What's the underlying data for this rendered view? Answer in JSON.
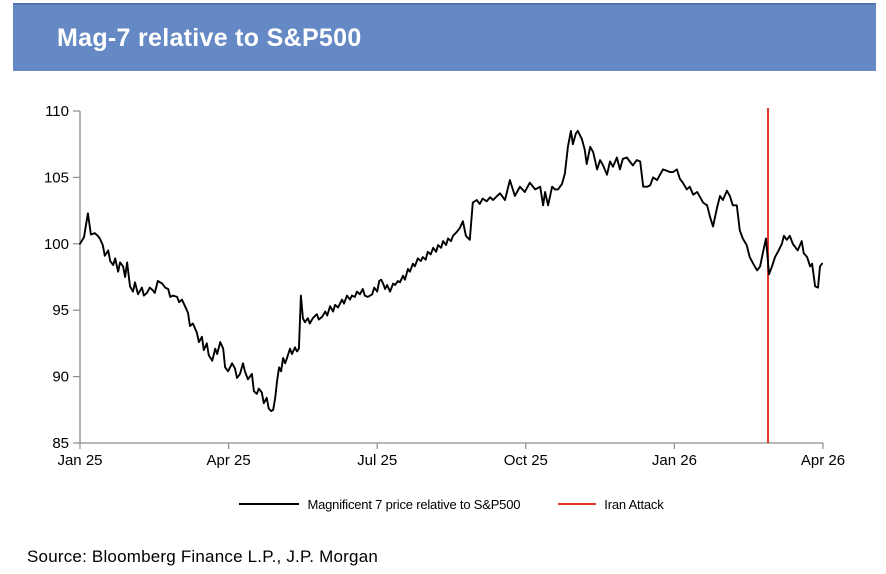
{
  "header": {
    "title": "Mag-7 relative to S&P500",
    "bg_color": "#6589c4",
    "top_border_color": "#4f75ab",
    "text_color": "#ffffff"
  },
  "source": {
    "text": "Source: Bloomberg Finance L.P., J.P. Morgan"
  },
  "chart_data": {
    "type": "line",
    "title": "Mag-7 relative to S&P500",
    "grid": false,
    "legend_position": "bottom-center",
    "axis_color": "#8c8c8c",
    "x_axis": {
      "ticks": [
        "Jan 25",
        "Apr 25",
        "Jul 25",
        "Oct 25",
        "Jan 26",
        "Apr 26"
      ],
      "tick_positions_months": [
        0,
        3,
        6,
        9,
        12,
        15
      ],
      "range_months": [
        0,
        15
      ]
    },
    "y_axis": {
      "ticks": [
        85,
        90,
        95,
        100,
        105,
        110
      ],
      "range": [
        85,
        110
      ]
    },
    "vline": {
      "label": "Iran Attack",
      "x_months": 13.89,
      "color": "#e5342a"
    },
    "series": [
      {
        "name": "Magnificent 7 price relative to S&P500",
        "color": "#000000",
        "points": [
          [
            0.0,
            100.0
          ],
          [
            0.08,
            100.5
          ],
          [
            0.16,
            102.3
          ],
          [
            0.22,
            100.7
          ],
          [
            0.3,
            100.8
          ],
          [
            0.36,
            100.6
          ],
          [
            0.4,
            100.4
          ],
          [
            0.46,
            99.9
          ],
          [
            0.5,
            99.1
          ],
          [
            0.57,
            99.5
          ],
          [
            0.61,
            98.7
          ],
          [
            0.67,
            98.4
          ],
          [
            0.71,
            98.9
          ],
          [
            0.77,
            97.9
          ],
          [
            0.81,
            98.6
          ],
          [
            0.87,
            98.3
          ],
          [
            0.91,
            97.5
          ],
          [
            0.95,
            98.6
          ],
          [
            1.01,
            96.8
          ],
          [
            1.07,
            96.4
          ],
          [
            1.11,
            97.1
          ],
          [
            1.17,
            96.2
          ],
          [
            1.25,
            96.7
          ],
          [
            1.29,
            96.1
          ],
          [
            1.35,
            96.3
          ],
          [
            1.41,
            96.7
          ],
          [
            1.47,
            96.5
          ],
          [
            1.51,
            96.3
          ],
          [
            1.57,
            97.2
          ],
          [
            1.66,
            97.0
          ],
          [
            1.72,
            96.7
          ],
          [
            1.78,
            96.6
          ],
          [
            1.82,
            96.0
          ],
          [
            1.88,
            96.1
          ],
          [
            1.96,
            96.0
          ],
          [
            2.0,
            95.6
          ],
          [
            2.06,
            95.8
          ],
          [
            2.12,
            95.3
          ],
          [
            2.18,
            94.8
          ],
          [
            2.22,
            93.8
          ],
          [
            2.28,
            94.0
          ],
          [
            2.36,
            93.3
          ],
          [
            2.4,
            92.6
          ],
          [
            2.46,
            93.0
          ],
          [
            2.5,
            92.0
          ],
          [
            2.56,
            92.5
          ],
          [
            2.6,
            91.6
          ],
          [
            2.67,
            91.2
          ],
          [
            2.73,
            92.1
          ],
          [
            2.77,
            91.7
          ],
          [
            2.83,
            92.6
          ],
          [
            2.89,
            92.1
          ],
          [
            2.93,
            90.7
          ],
          [
            2.99,
            90.4
          ],
          [
            3.07,
            91.0
          ],
          [
            3.13,
            90.6
          ],
          [
            3.17,
            89.9
          ],
          [
            3.23,
            90.2
          ],
          [
            3.29,
            91.0
          ],
          [
            3.33,
            90.4
          ],
          [
            3.39,
            89.8
          ],
          [
            3.47,
            90.2
          ],
          [
            3.51,
            88.9
          ],
          [
            3.57,
            88.7
          ],
          [
            3.61,
            89.1
          ],
          [
            3.67,
            88.8
          ],
          [
            3.71,
            88.0
          ],
          [
            3.77,
            88.4
          ],
          [
            3.81,
            87.6
          ],
          [
            3.86,
            87.4
          ],
          [
            3.9,
            87.5
          ],
          [
            3.94,
            88.4
          ],
          [
            3.98,
            89.7
          ],
          [
            4.02,
            90.7
          ],
          [
            4.06,
            90.4
          ],
          [
            4.1,
            91.4
          ],
          [
            4.14,
            91.0
          ],
          [
            4.18,
            91.4
          ],
          [
            4.24,
            92.1
          ],
          [
            4.28,
            91.7
          ],
          [
            4.34,
            92.2
          ],
          [
            4.38,
            91.9
          ],
          [
            4.42,
            92.1
          ],
          [
            4.46,
            96.1
          ],
          [
            4.5,
            94.4
          ],
          [
            4.54,
            94.1
          ],
          [
            4.6,
            94.4
          ],
          [
            4.64,
            94.0
          ],
          [
            4.7,
            94.4
          ],
          [
            4.78,
            94.7
          ],
          [
            4.82,
            94.3
          ],
          [
            4.89,
            94.5
          ],
          [
            4.95,
            94.9
          ],
          [
            4.99,
            94.6
          ],
          [
            5.05,
            95.3
          ],
          [
            5.11,
            94.9
          ],
          [
            5.15,
            95.4
          ],
          [
            5.21,
            95.2
          ],
          [
            5.29,
            95.8
          ],
          [
            5.33,
            95.5
          ],
          [
            5.39,
            96.1
          ],
          [
            5.45,
            95.8
          ],
          [
            5.49,
            96.1
          ],
          [
            5.55,
            96.0
          ],
          [
            5.59,
            96.4
          ],
          [
            5.65,
            96.2
          ],
          [
            5.71,
            96.6
          ],
          [
            5.75,
            96.1
          ],
          [
            5.81,
            96.0
          ],
          [
            5.9,
            96.2
          ],
          [
            5.94,
            96.7
          ],
          [
            6.0,
            96.4
          ],
          [
            6.04,
            97.2
          ],
          [
            6.08,
            97.3
          ],
          [
            6.12,
            97.0
          ],
          [
            6.16,
            96.6
          ],
          [
            6.2,
            96.9
          ],
          [
            6.26,
            96.4
          ],
          [
            6.32,
            97.0
          ],
          [
            6.36,
            96.9
          ],
          [
            6.42,
            97.2
          ],
          [
            6.46,
            97.1
          ],
          [
            6.52,
            97.6
          ],
          [
            6.56,
            97.3
          ],
          [
            6.62,
            98.1
          ],
          [
            6.66,
            97.9
          ],
          [
            6.72,
            98.5
          ],
          [
            6.76,
            98.3
          ],
          [
            6.82,
            98.9
          ],
          [
            6.88,
            98.7
          ],
          [
            6.92,
            99.0
          ],
          [
            6.98,
            98.8
          ],
          [
            7.02,
            99.4
          ],
          [
            7.08,
            99.2
          ],
          [
            7.13,
            99.7
          ],
          [
            7.19,
            99.4
          ],
          [
            7.23,
            99.9
          ],
          [
            7.29,
            99.7
          ],
          [
            7.33,
            100.2
          ],
          [
            7.39,
            99.9
          ],
          [
            7.43,
            100.4
          ],
          [
            7.49,
            100.2
          ],
          [
            7.53,
            100.6
          ],
          [
            7.61,
            100.9
          ],
          [
            7.67,
            101.2
          ],
          [
            7.73,
            101.7
          ],
          [
            7.79,
            100.6
          ],
          [
            7.87,
            100.3
          ],
          [
            7.93,
            103.1
          ],
          [
            8.01,
            103.3
          ],
          [
            8.07,
            103.0
          ],
          [
            8.13,
            103.4
          ],
          [
            8.21,
            103.2
          ],
          [
            8.28,
            103.5
          ],
          [
            8.34,
            103.3
          ],
          [
            8.42,
            103.6
          ],
          [
            8.48,
            103.8
          ],
          [
            8.58,
            103.3
          ],
          [
            8.68,
            104.8
          ],
          [
            8.78,
            103.6
          ],
          [
            8.88,
            104.3
          ],
          [
            8.98,
            103.9
          ],
          [
            9.08,
            104.6
          ],
          [
            9.19,
            104.1
          ],
          [
            9.29,
            104.3
          ],
          [
            9.35,
            102.9
          ],
          [
            9.39,
            103.9
          ],
          [
            9.45,
            102.9
          ],
          [
            9.53,
            104.3
          ],
          [
            9.59,
            104.1
          ],
          [
            9.65,
            104.1
          ],
          [
            9.73,
            104.5
          ],
          [
            9.79,
            105.3
          ],
          [
            9.85,
            107.3
          ],
          [
            9.91,
            108.5
          ],
          [
            9.95,
            107.5
          ],
          [
            10.01,
            108.3
          ],
          [
            10.05,
            108.5
          ],
          [
            10.13,
            107.9
          ],
          [
            10.19,
            107.1
          ],
          [
            10.23,
            106.0
          ],
          [
            10.3,
            107.3
          ],
          [
            10.36,
            106.9
          ],
          [
            10.44,
            105.6
          ],
          [
            10.5,
            106.3
          ],
          [
            10.56,
            105.9
          ],
          [
            10.64,
            105.2
          ],
          [
            10.7,
            106.2
          ],
          [
            10.76,
            105.8
          ],
          [
            10.84,
            106.5
          ],
          [
            10.9,
            105.6
          ],
          [
            10.96,
            106.4
          ],
          [
            11.04,
            106.5
          ],
          [
            11.1,
            106.2
          ],
          [
            11.16,
            105.9
          ],
          [
            11.24,
            106.3
          ],
          [
            11.31,
            106.2
          ],
          [
            11.37,
            104.3
          ],
          [
            11.45,
            104.3
          ],
          [
            11.51,
            104.4
          ],
          [
            11.57,
            105.0
          ],
          [
            11.65,
            104.8
          ],
          [
            11.71,
            105.2
          ],
          [
            11.77,
            105.6
          ],
          [
            11.85,
            105.5
          ],
          [
            11.91,
            105.4
          ],
          [
            11.97,
            105.4
          ],
          [
            12.05,
            105.6
          ],
          [
            12.11,
            104.9
          ],
          [
            12.17,
            104.6
          ],
          [
            12.25,
            104.1
          ],
          [
            12.31,
            104.3
          ],
          [
            12.38,
            103.7
          ],
          [
            12.46,
            103.9
          ],
          [
            12.52,
            103.5
          ],
          [
            12.58,
            103.1
          ],
          [
            12.66,
            102.9
          ],
          [
            12.72,
            102.0
          ],
          [
            12.78,
            101.3
          ],
          [
            12.86,
            102.7
          ],
          [
            12.92,
            103.6
          ],
          [
            12.98,
            103.3
          ],
          [
            13.06,
            104.0
          ],
          [
            13.12,
            103.6
          ],
          [
            13.18,
            102.9
          ],
          [
            13.26,
            102.9
          ],
          [
            13.32,
            101.0
          ],
          [
            13.38,
            100.4
          ],
          [
            13.46,
            99.9
          ],
          [
            13.52,
            99.0
          ],
          [
            13.59,
            98.5
          ],
          [
            13.67,
            98.0
          ],
          [
            13.73,
            98.3
          ],
          [
            13.79,
            99.4
          ],
          [
            13.85,
            100.4
          ],
          [
            13.91,
            97.7
          ],
          [
            13.97,
            98.3
          ],
          [
            14.03,
            99.0
          ],
          [
            14.09,
            99.4
          ],
          [
            14.17,
            100.0
          ],
          [
            14.21,
            100.6
          ],
          [
            14.27,
            100.3
          ],
          [
            14.33,
            100.6
          ],
          [
            14.39,
            100.0
          ],
          [
            14.43,
            99.8
          ],
          [
            14.49,
            99.5
          ],
          [
            14.57,
            100.2
          ],
          [
            14.61,
            99.3
          ],
          [
            14.68,
            99.0
          ],
          [
            14.74,
            98.3
          ],
          [
            14.78,
            98.5
          ],
          [
            14.84,
            96.8
          ],
          [
            14.9,
            96.7
          ],
          [
            14.94,
            98.3
          ],
          [
            14.98,
            98.5
          ]
        ]
      }
    ]
  }
}
